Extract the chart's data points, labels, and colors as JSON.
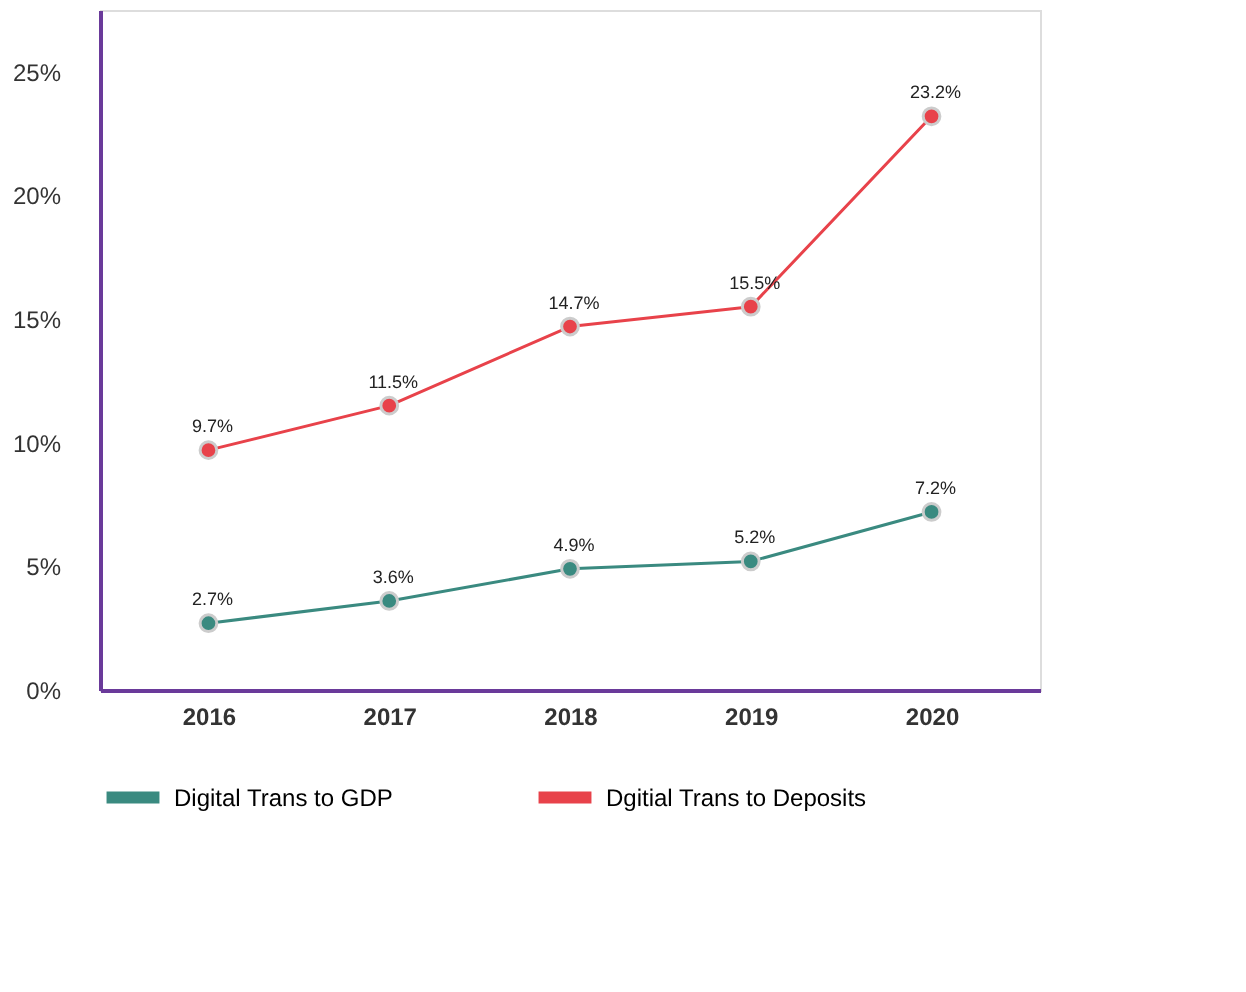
{
  "chart_data": {
    "type": "line",
    "categories": [
      "2016",
      "2017",
      "2018",
      "2019",
      "2020"
    ],
    "series": [
      {
        "name": "Digital Trans to GDP",
        "color": "#3a8a80",
        "values": [
          2.7,
          3.6,
          4.9,
          5.2,
          7.2
        ],
        "value_labels": [
          "2.7%",
          "3.6%",
          "4.9%",
          "5.2%",
          "7.2%"
        ]
      },
      {
        "name": "Dgitial Trans to Deposits",
        "color": "#e8424a",
        "values": [
          9.7,
          11.5,
          14.7,
          15.5,
          23.2
        ],
        "value_labels": [
          "9.7%",
          "11.5%",
          "14.7%",
          "15.5%",
          "23.2%"
        ]
      }
    ],
    "ylim": [
      0,
      27.5
    ],
    "yticks": [
      {
        "value": 0,
        "label": "0%"
      },
      {
        "value": 5,
        "label": "5%"
      },
      {
        "value": 10,
        "label": "10%"
      },
      {
        "value": 15,
        "label": "15%"
      },
      {
        "value": 20,
        "label": "20%"
      },
      {
        "value": 25,
        "label": "25%"
      }
    ],
    "marker": "circle",
    "line_style": "solid",
    "grid": false,
    "legend": "bottom"
  }
}
